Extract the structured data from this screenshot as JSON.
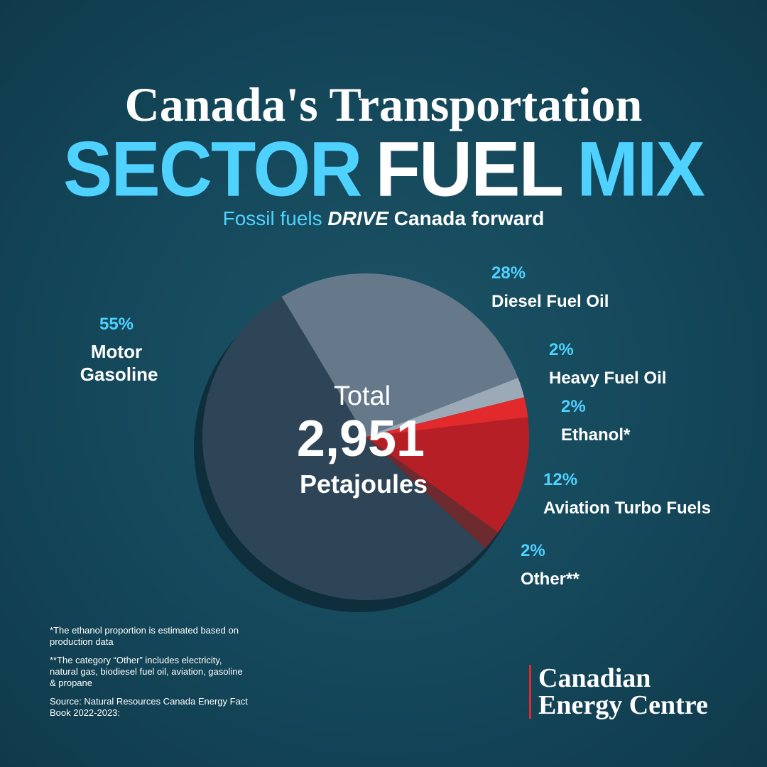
{
  "chart_data": {
    "type": "pie",
    "title_line1": "Canada's Transportation",
    "title_line2": [
      "SECTOR",
      "FUEL",
      "MIX"
    ],
    "subtitle": [
      "Fossil fuels",
      "DRIVE",
      "Canada forward"
    ],
    "center": [
      "Total",
      "2,951",
      "Petajoules"
    ],
    "categories": [
      "Motor Gasoline",
      "Diesel Fuel Oil",
      "Heavy Fuel Oil",
      "Ethanol*",
      "Aviation Turbo Fuels",
      "Other**"
    ],
    "values": [
      55,
      28,
      2,
      2,
      12,
      2
    ],
    "value_labels": [
      "55%",
      "28%",
      "2%",
      "2%",
      "12%",
      "2%"
    ],
    "colors": [
      "#2d4556",
      "#66798b",
      "#9ca9b6",
      "#e2292b",
      "#b71f26",
      "#6e2b2f"
    ],
    "footnotes": [
      "*The ethanol proportion is estimated based on production data",
      "**The category “Other” includes electricity, natural gas, biodiesel fuel oil, aviation, gasoline & propane",
      "Source: Natural Resources Canada Energy Fact Book 2022-2023:"
    ],
    "logo": [
      "Canadian",
      "Energy Centre"
    ]
  }
}
